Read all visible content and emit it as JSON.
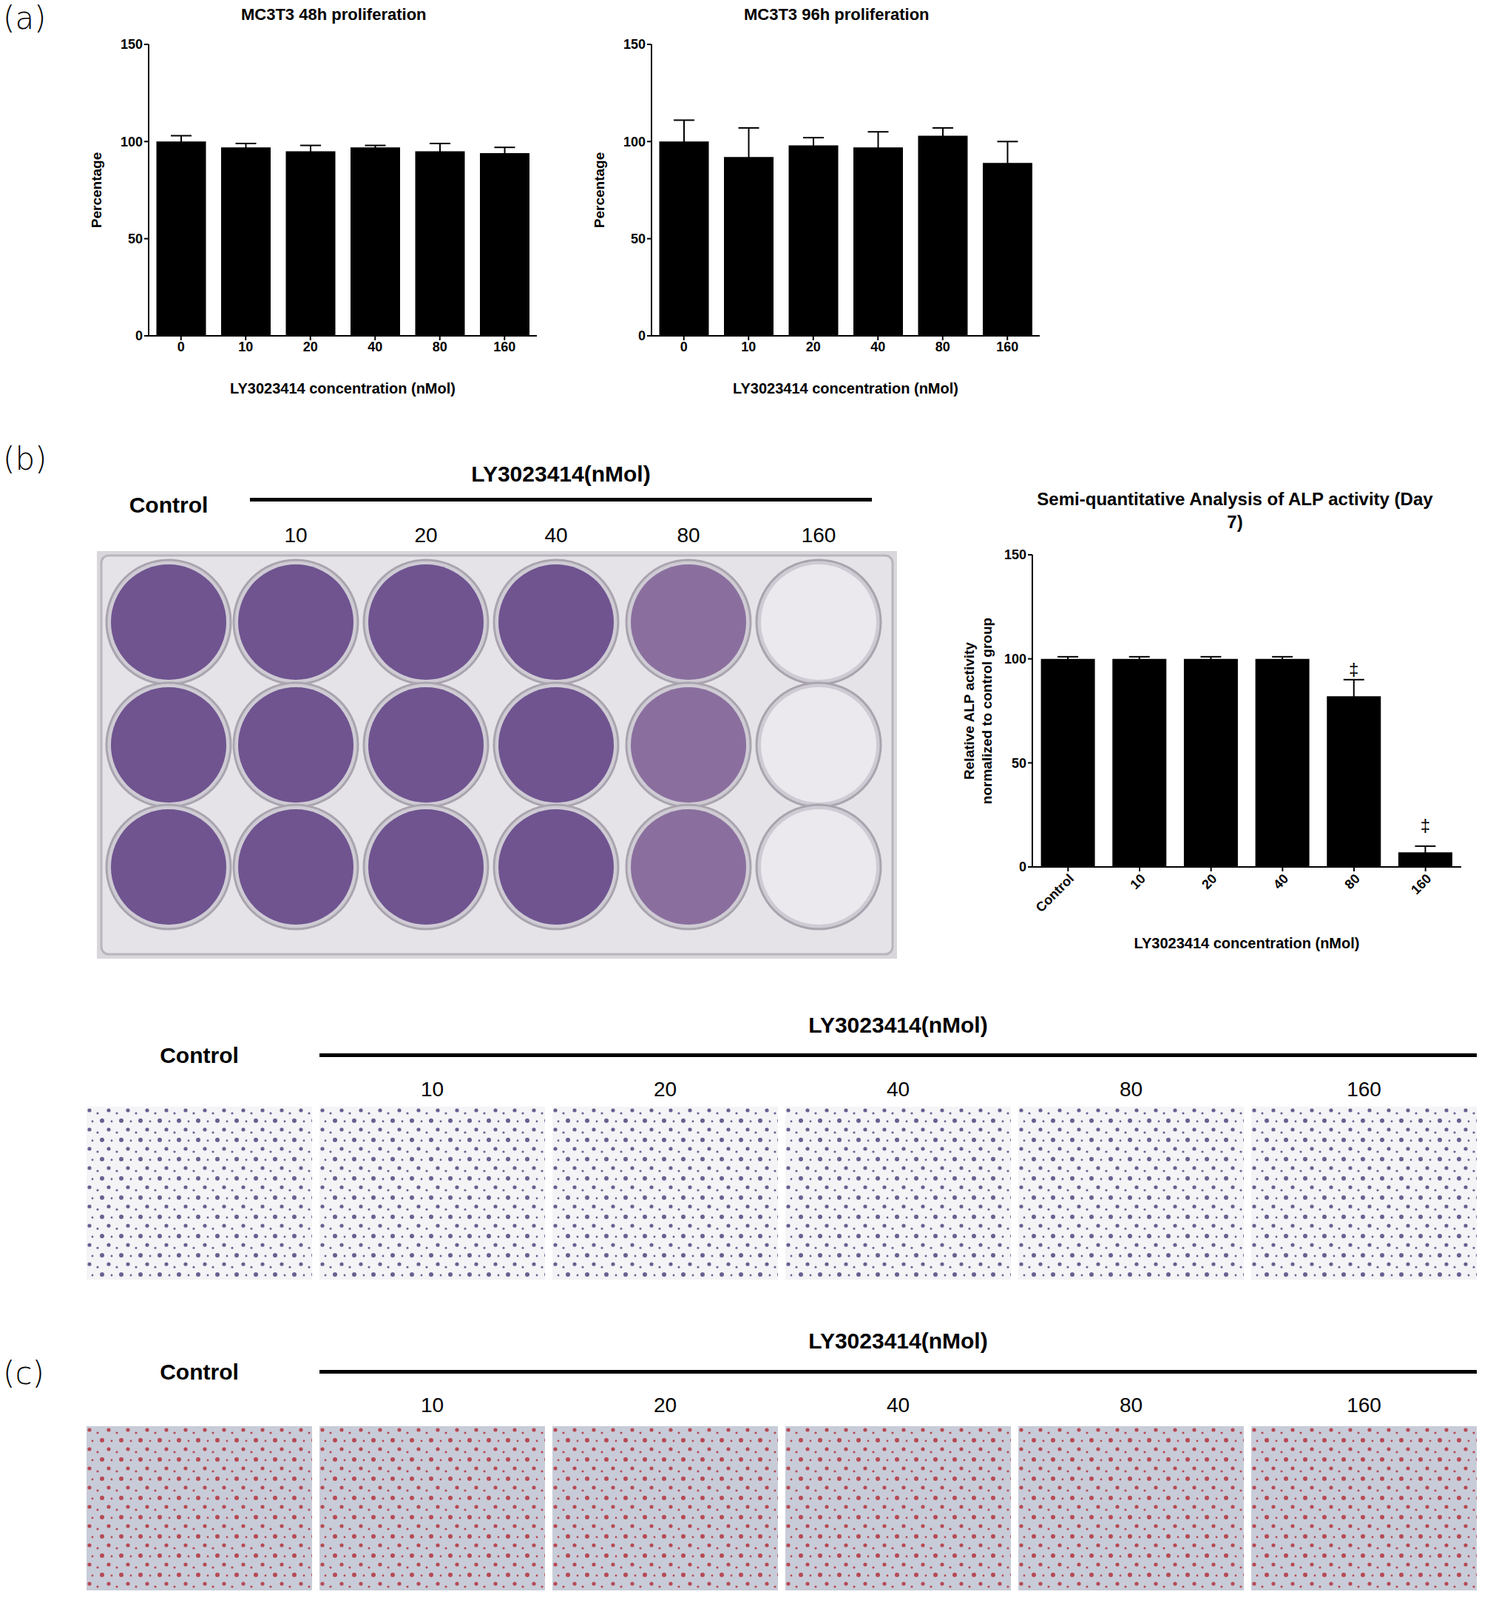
{
  "panel_labels": [
    "(a)",
    "(b)",
    "(c)"
  ],
  "chart_data": [
    {
      "type": "bar",
      "title": "MC3T3 48h proliferation",
      "x_label": "LY3023414 concentration (nMol)",
      "y_label": "Percentage",
      "categories": [
        "0",
        "10",
        "20",
        "40",
        "80",
        "160"
      ],
      "values": [
        100,
        97,
        95,
        97,
        95,
        94
      ],
      "errors": [
        3,
        2,
        3,
        1,
        4,
        3
      ],
      "color": "#000000",
      "ylim": [
        0,
        150
      ],
      "yticks": [
        0,
        50,
        100,
        150
      ],
      "grid": false
    },
    {
      "type": "bar",
      "title": "MC3T3 96h proliferation",
      "x_label": "LY3023414 concentration (nMol)",
      "y_label": "Percentage",
      "categories": [
        "0",
        "10",
        "20",
        "40",
        "80",
        "160"
      ],
      "values": [
        100,
        92,
        98,
        97,
        103,
        89
      ],
      "errors": [
        11,
        15,
        4,
        8,
        4,
        11
      ],
      "color": "#000000",
      "ylim": [
        0,
        150
      ],
      "yticks": [
        0,
        50,
        100,
        150
      ],
      "grid": false
    },
    {
      "type": "bar",
      "title": "Semi-quantitative Analysis of ALP activity (Day 7)",
      "x_label": "LY3023414 concentration (nMol)",
      "y_label": "Relative ALP activity normalized to control group",
      "categories": [
        "Control",
        "10",
        "20",
        "40",
        "80",
        "160"
      ],
      "values": [
        100,
        100,
        100,
        100,
        82,
        7
      ],
      "errors": [
        1,
        1,
        1,
        1,
        8,
        3
      ],
      "annotations": [
        {
          "category": "80",
          "text": "‡"
        },
        {
          "category": "160",
          "text": "‡"
        }
      ],
      "color": "#000000",
      "ylim": [
        0,
        150
      ],
      "yticks": [
        0,
        50,
        100,
        150
      ],
      "grid": false
    }
  ],
  "plate_photo": {
    "control": "Control",
    "group_label": "LY3023414(nMol)",
    "columns": [
      "10",
      "20",
      "40",
      "80",
      "160"
    ]
  },
  "alp_stain_images": {
    "control": "Control",
    "group_label": "LY3023414(nMol)",
    "columns": [
      "10",
      "20",
      "40",
      "80",
      "160"
    ]
  },
  "alizarin_red_images": {
    "control": "Control",
    "group_label": "LY3023414(nMol)",
    "columns": [
      "10",
      "20",
      "40",
      "80",
      "160"
    ]
  }
}
